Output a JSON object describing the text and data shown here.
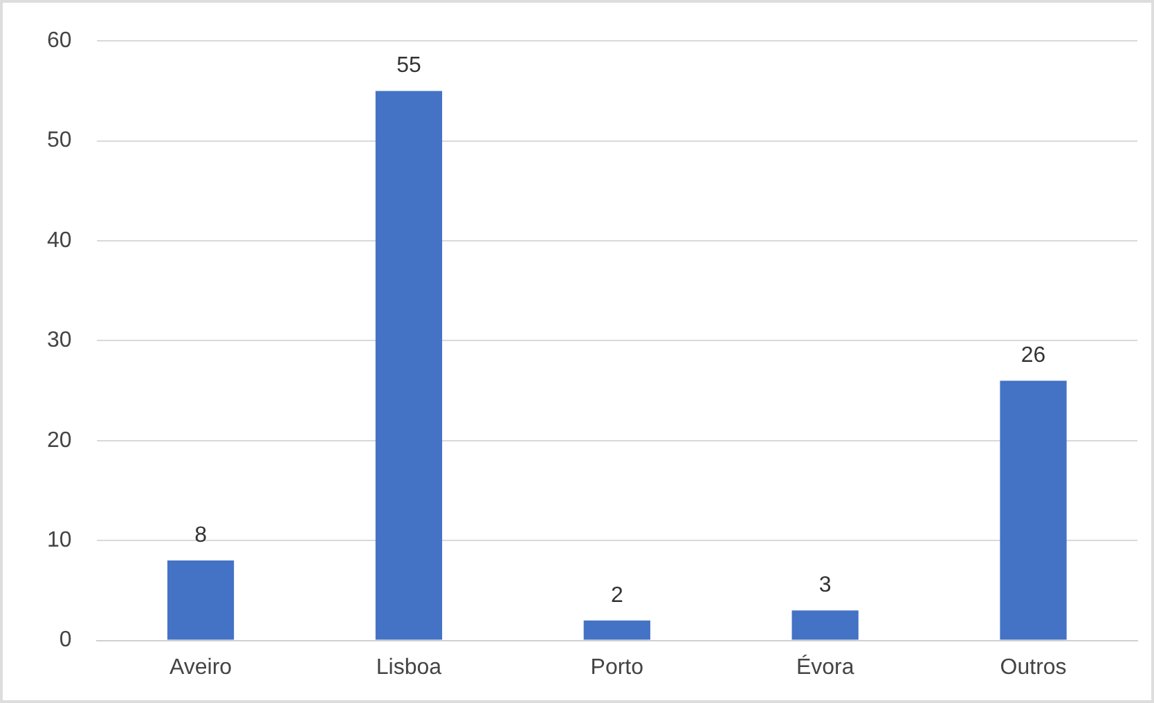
{
  "chart_data": {
    "type": "bar",
    "categories": [
      "Aveiro",
      "Lisboa",
      "Porto",
      "Évora",
      "Outros"
    ],
    "values": [
      8,
      55,
      2,
      3,
      26
    ],
    "color": "#4472c4",
    "ylim": [
      0,
      60
    ],
    "yticks": [
      0,
      10,
      20,
      30,
      40,
      50,
      60
    ],
    "grid": "y",
    "data_labels": true,
    "legend": false
  }
}
